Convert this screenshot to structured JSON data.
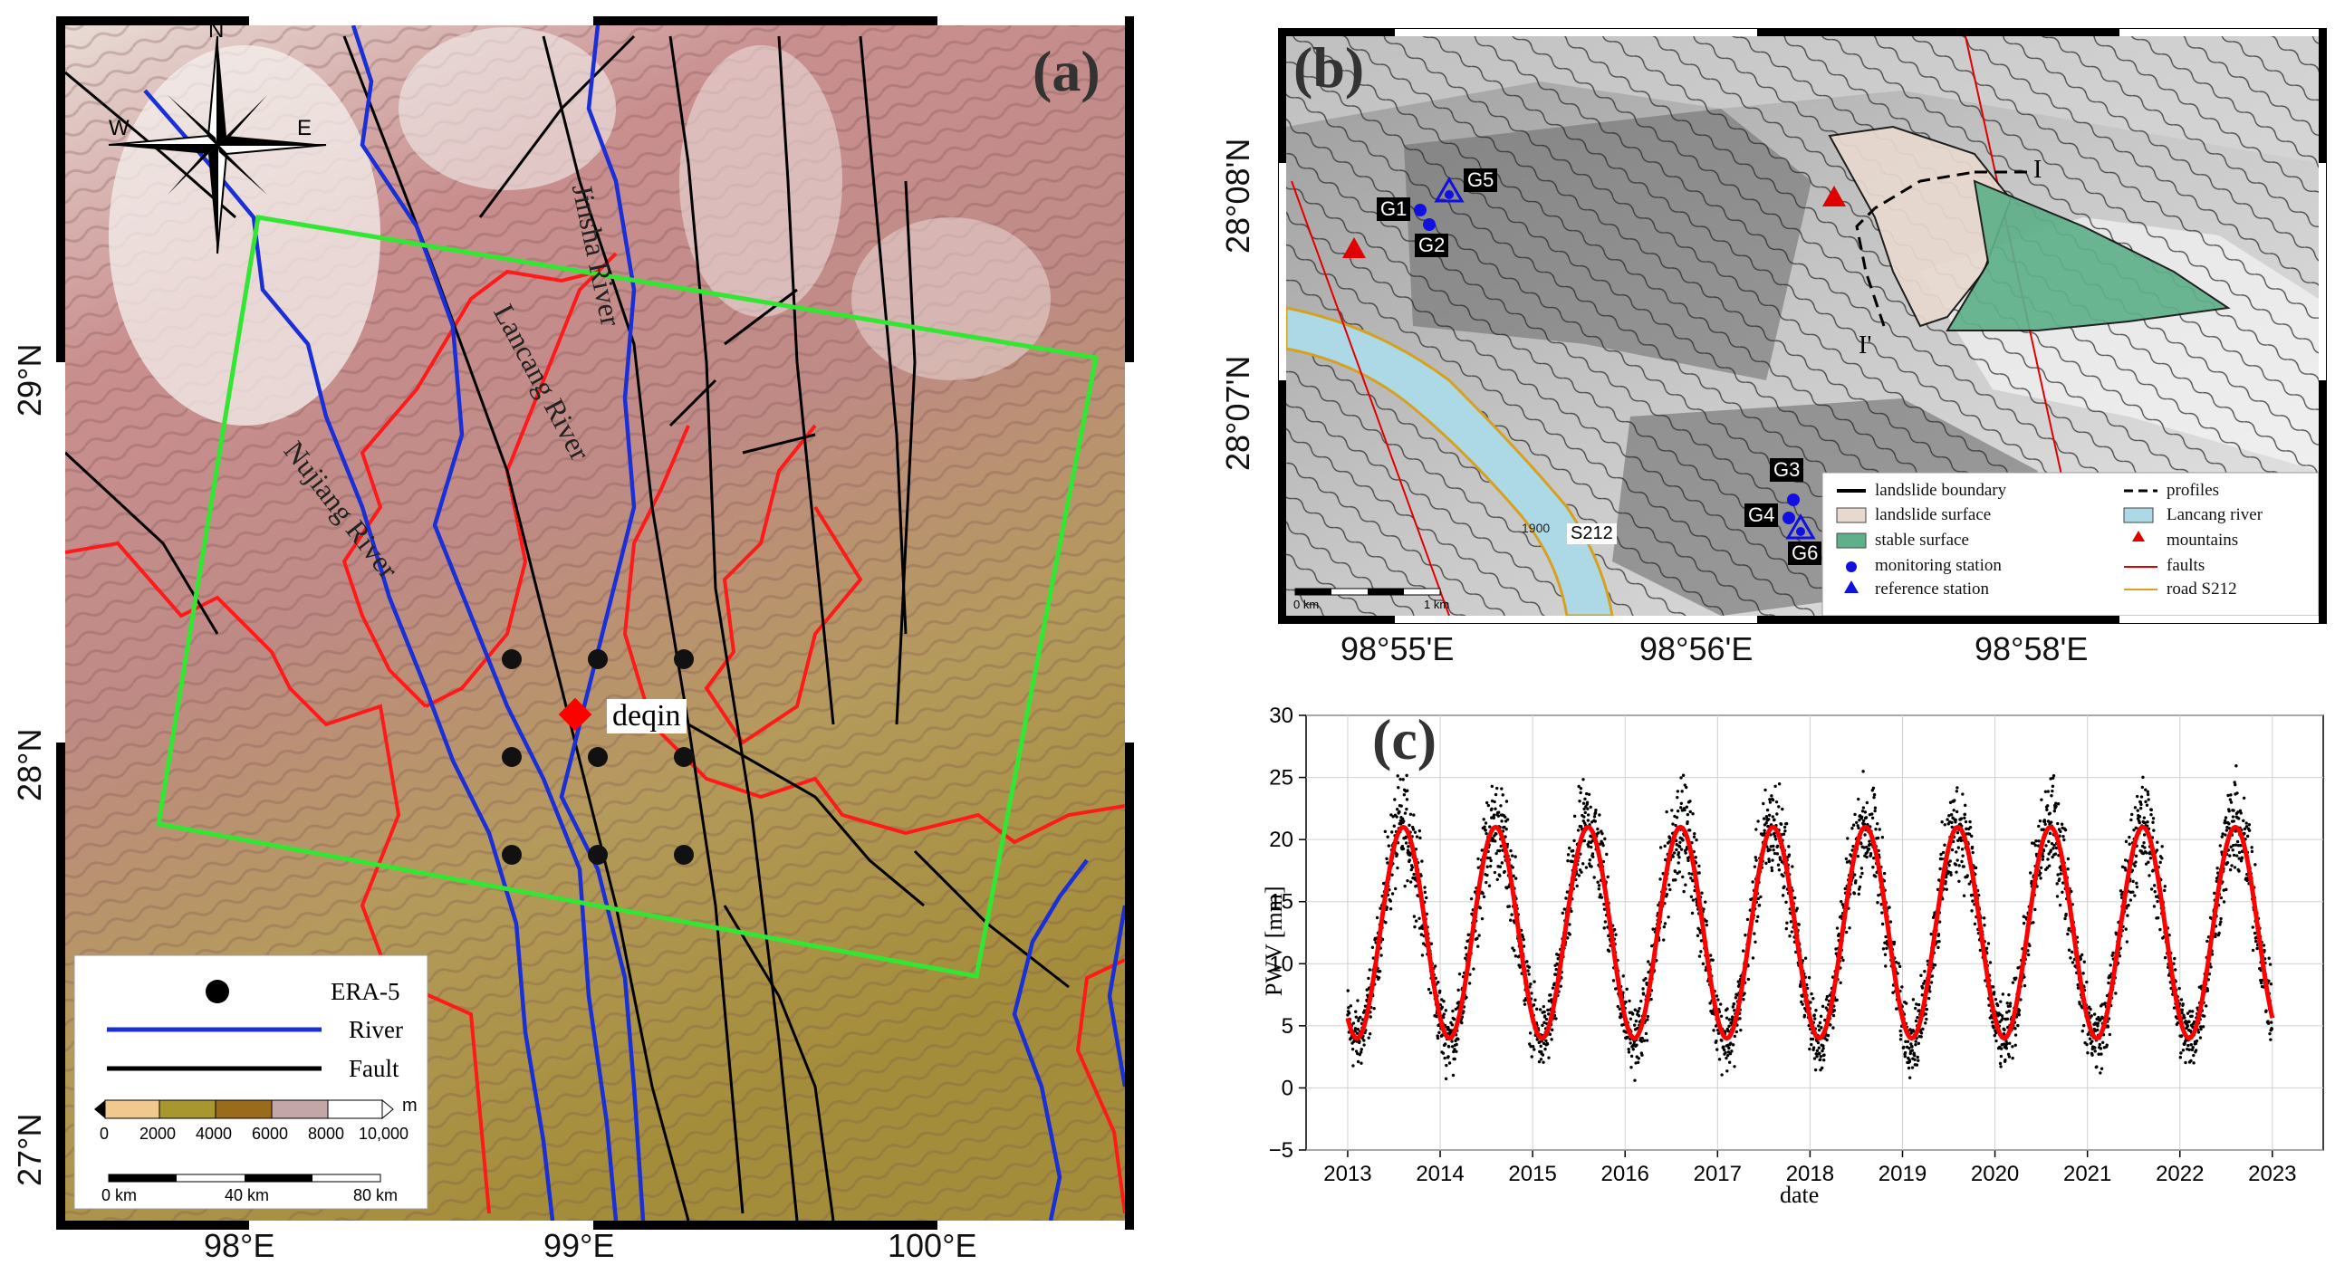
{
  "panel_a": {
    "label": "(a)",
    "compass": {
      "north": "N",
      "west": "W",
      "east": "E"
    },
    "lon_ticks": [
      "98°E",
      "99°E",
      "100°E"
    ],
    "lat_ticks": [
      "29°N",
      "28°N",
      "27°N"
    ],
    "rivers": [
      "Jinsha River",
      "Lancang River",
      "Nujiang River"
    ],
    "town": "deqin",
    "legend": {
      "era5": "ERA-5",
      "river": "River",
      "fault": "Fault",
      "elevation_ticks": [
        "0",
        "2000",
        "4000",
        "6000",
        "8000",
        "10,000"
      ],
      "elevation_unit": "m",
      "scale_ticks": [
        "0 km",
        "40 km",
        "80 km"
      ]
    },
    "colors": {
      "river": "#1a2fd6",
      "fault": "#000000",
      "border": "#ff1a1a",
      "swath": "#33e633",
      "town": "#ff0000"
    }
  },
  "panel_b": {
    "label": "(b)",
    "lat_ticks": [
      "28°08'N",
      "28°07'N"
    ],
    "lon_ticks": [
      "98°55'E",
      "98°56'E",
      "98°58'E"
    ],
    "stations": [
      "G1",
      "G2",
      "G3",
      "G4",
      "G5",
      "G6"
    ],
    "profile_ends": [
      "I",
      "I'"
    ],
    "road_label": "S212",
    "contour_label": "1900",
    "scale_ticks": [
      "0 km",
      "1 km"
    ],
    "legend": {
      "col1": [
        "landslide boundary",
        "landslide surface",
        "stable surface",
        "monitoring station",
        "reference station"
      ],
      "col2": [
        "profiles",
        "Lancang river",
        "mountains",
        "faults",
        "road S212"
      ]
    },
    "colors": {
      "landslide_surface": "#e8d9cf",
      "stable_surface": "#5fb08a",
      "lancang_river": "#add8e6",
      "mountains": "#e00000",
      "faults": "#e00000",
      "road": "#d6a020",
      "station": "#1010e0"
    }
  },
  "panel_c": {
    "label": "(c)"
  },
  "chart_data": {
    "type": "scatter",
    "xlabel": "date",
    "ylabel": "PWV [mm]",
    "ylim": [
      -5,
      30
    ],
    "xlim": [
      2012.55,
      2023.55
    ],
    "x_ticks": [
      "2013",
      "2014",
      "2015",
      "2016",
      "2017",
      "2018",
      "2019",
      "2020",
      "2021",
      "2022",
      "2023"
    ],
    "y_ticks": [
      "−5",
      "0",
      "5",
      "10",
      "15",
      "20",
      "25",
      "30"
    ],
    "grid": true,
    "series": [
      {
        "kind": "points",
        "color": "#000000",
        "x_range": [
          2013.0,
          2023.0
        ],
        "mean": 12.5,
        "amplitude": 8.5,
        "peak_phase": 0.6,
        "scatter_mm": 3
      },
      {
        "kind": "fit-line",
        "color": "#ff0000",
        "x_range": [
          2013.0,
          2023.0
        ],
        "min": 4,
        "max": 21,
        "peak_phase": 0.6
      }
    ]
  }
}
